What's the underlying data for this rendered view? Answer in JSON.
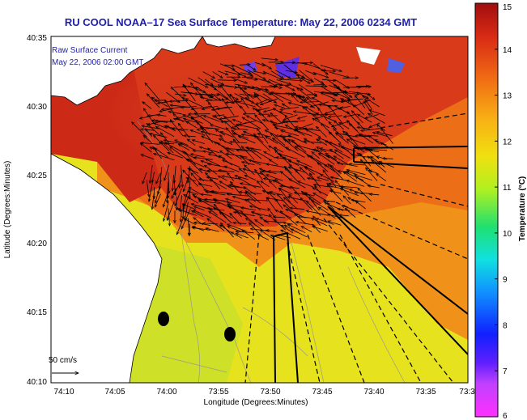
{
  "title": "RU COOL   NOAA–17  Sea Surface Temperature:  May 22, 2006 0234 GMT",
  "legend": {
    "line1": "Raw Surface Current",
    "line2": "May 22, 2006 02:00 GMT",
    "scale_label": "50 cm/s"
  },
  "axes": {
    "xlabel": "Longitude (Degrees:Minutes)",
    "ylabel": "Latitude (Degrees:Minutes)",
    "xticks": [
      "74:10",
      "74:05",
      "74:00",
      "73:55",
      "73:50",
      "73:45",
      "73:40",
      "73:35",
      "73:3"
    ],
    "yticks": [
      "40:35",
      "40:30",
      "40:25",
      "40:20",
      "40:15",
      "40:10"
    ]
  },
  "colorbar": {
    "label": "Temperature (°C)",
    "ticks": [
      "15",
      "14",
      "13",
      "12",
      "11",
      "10",
      "9",
      "8",
      "7",
      "6"
    ],
    "min": 6,
    "max": 15
  },
  "colors": {
    "title": "#1f1fa8",
    "land": "#ffffff",
    "warm": "#d42a1a",
    "mid": "#f07a16",
    "cool": "#e9e61a"
  }
}
